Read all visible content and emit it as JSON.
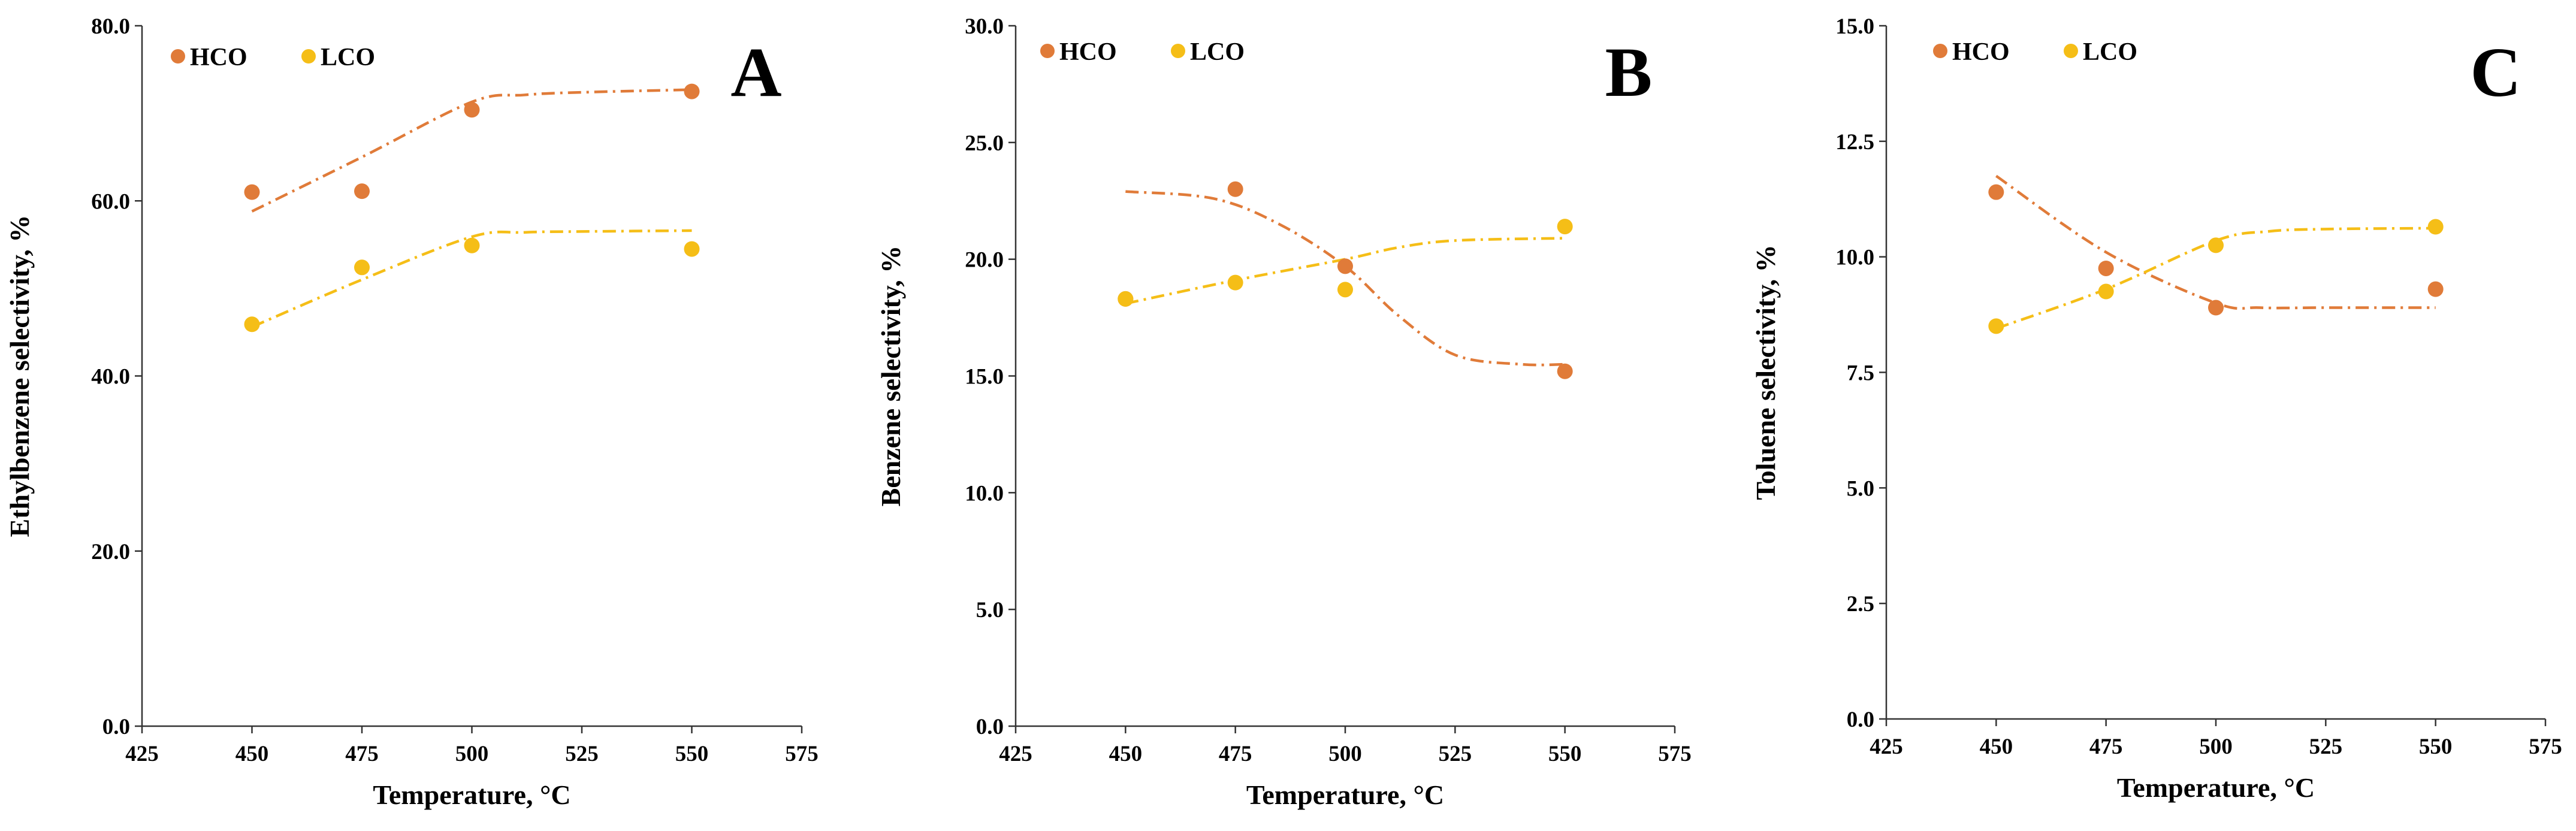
{
  "chart_data": [
    {
      "type": "scatter",
      "panel_label": "A",
      "xlabel": "Temperature, °C",
      "ylabel": "Ethylbenzene selectivity, %",
      "xlim": [
        425,
        575
      ],
      "ylim": [
        0,
        80
      ],
      "xticks": [
        425,
        450,
        475,
        500,
        525,
        550,
        575
      ],
      "yticks": [
        0,
        20,
        40,
        60,
        80
      ],
      "ytick_labels": [
        "0.0",
        "20.0",
        "40.0",
        "60.0",
        "80.0"
      ],
      "legend": [
        "HCO",
        "LCO"
      ],
      "series": [
        {
          "name": "HCO",
          "color": "#E07B39",
          "x": [
            450,
            475,
            500,
            550
          ],
          "y": [
            61.0,
            61.1,
            70.4,
            72.5
          ],
          "trend": {
            "x": [
              450,
              475,
              500,
              512,
              525,
              550
            ],
            "y": [
              58.8,
              65.0,
              71.3,
              72.1,
              72.4,
              72.7
            ]
          }
        },
        {
          "name": "LCO",
          "color": "#F5BE17",
          "x": [
            450,
            475,
            500,
            550
          ],
          "y": [
            45.9,
            52.4,
            54.9,
            54.5
          ],
          "trend": {
            "x": [
              450,
              475,
              500,
              512,
              525,
              550
            ],
            "y": [
              45.6,
              51.0,
              55.9,
              56.4,
              56.5,
              56.6
            ]
          }
        }
      ]
    },
    {
      "type": "scatter",
      "panel_label": "B",
      "xlabel": "Temperature, °C",
      "ylabel": "Benzene selectivity, %",
      "xlim": [
        425,
        575
      ],
      "ylim": [
        0,
        30
      ],
      "xticks": [
        425,
        450,
        475,
        500,
        525,
        550,
        575
      ],
      "yticks": [
        0,
        5,
        10,
        15,
        20,
        25,
        30
      ],
      "ytick_labels": [
        "0.0",
        "5.0",
        "10.0",
        "15.0",
        "20.0",
        "25.0",
        "30.0"
      ],
      "legend": [
        "HCO",
        "LCO"
      ],
      "series": [
        {
          "name": "HCO",
          "color": "#E07B39",
          "x": [
            450,
            475,
            500,
            550
          ],
          "y": [
            18.3,
            23.0,
            19.7,
            15.2
          ],
          "trend": {
            "x": [
              450,
              470,
              485,
              500,
              512,
              525,
              540,
              550
            ],
            "y": [
              22.9,
              22.6,
              21.5,
              19.7,
              17.6,
              15.9,
              15.5,
              15.5
            ]
          }
        },
        {
          "name": "LCO",
          "color": "#F5BE17",
          "x": [
            450,
            475,
            500,
            550
          ],
          "y": [
            18.3,
            19.0,
            18.7,
            21.4
          ],
          "trend": {
            "x": [
              450,
              475,
              500,
              512,
              525,
              550
            ],
            "y": [
              18.1,
              19.1,
              20.0,
              20.5,
              20.8,
              20.9
            ]
          }
        }
      ]
    },
    {
      "type": "scatter",
      "panel_label": "C",
      "xlabel": "Temperature, °C",
      "ylabel": "Toluene selectivity, %",
      "xlim": [
        425,
        575
      ],
      "ylim": [
        0,
        15
      ],
      "xticks": [
        425,
        450,
        475,
        500,
        525,
        550,
        575
      ],
      "yticks": [
        0,
        2.5,
        5,
        7.5,
        10,
        12.5,
        15
      ],
      "ytick_labels": [
        "0.0",
        "2.5",
        "5.0",
        "7.5",
        "10.0",
        "12.5",
        "15.0"
      ],
      "legend": [
        "HCO",
        "LCO"
      ],
      "series": [
        {
          "name": "HCO",
          "color": "#E07B39",
          "x": [
            450,
            475,
            500,
            550
          ],
          "y": [
            11.4,
            9.75,
            8.9,
            9.3
          ],
          "trend": {
            "x": [
              450,
              475,
              500,
              510,
              525,
              550
            ],
            "y": [
              11.75,
              10.1,
              9.0,
              8.9,
              8.9,
              8.9
            ]
          }
        },
        {
          "name": "LCO",
          "color": "#F5BE17",
          "x": [
            450,
            475,
            500,
            550
          ],
          "y": [
            8.5,
            9.25,
            10.25,
            10.65
          ],
          "trend": {
            "x": [
              450,
              475,
              500,
              512,
              525,
              550
            ],
            "y": [
              8.45,
              9.3,
              10.35,
              10.55,
              10.6,
              10.62
            ]
          }
        }
      ]
    }
  ]
}
